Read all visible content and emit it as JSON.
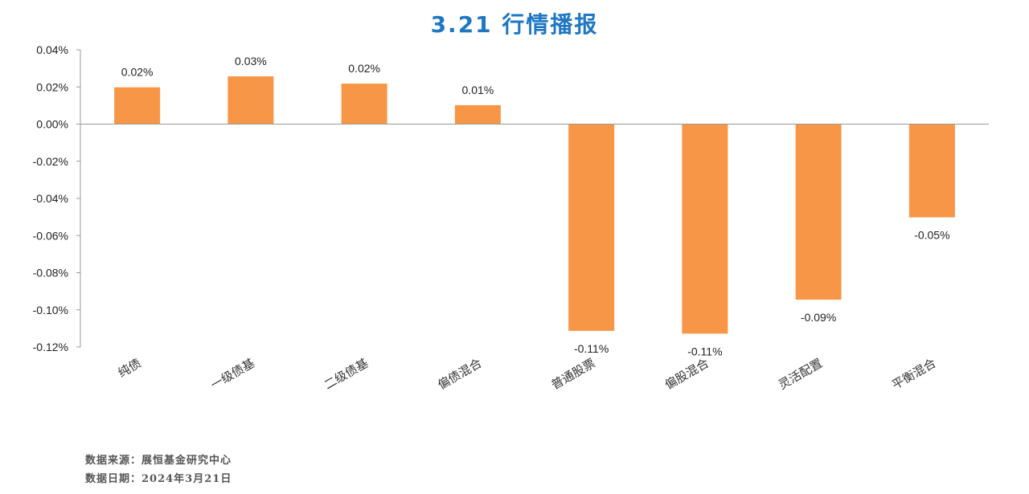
{
  "chart_data": {
    "type": "bar",
    "title": "3.21 行情播报",
    "categories": [
      "纯债",
      "一级债基",
      "二级债基",
      "偏债混合",
      "普通股票",
      "偏股混合",
      "灵活配置",
      "平衡混合"
    ],
    "values": [
      0.0198,
      0.0257,
      0.0218,
      0.0102,
      -0.1113,
      -0.1128,
      -0.0945,
      -0.0502
    ],
    "value_labels": [
      "0.02%",
      "0.03%",
      "0.02%",
      "0.01%",
      "-0.11%",
      "-0.11%",
      "-0.09%",
      "-0.05%"
    ],
    "yticks": [
      0.04,
      0.02,
      0.0,
      -0.02,
      -0.04,
      -0.06,
      -0.08,
      -0.1,
      -0.12
    ],
    "ytick_labels": [
      "0.04%",
      "0.02%",
      "0.00%",
      "-0.02%",
      "-0.04%",
      "-0.06%",
      "-0.08%",
      "-0.10%",
      "-0.12%"
    ],
    "ylim": [
      -0.12,
      0.04
    ],
    "bar_color": "#f79646",
    "axis_color": "#999999",
    "grid": false,
    "legend": "none"
  },
  "footer": {
    "source": "数据来源：展恒基金研究中心",
    "date": "数据日期：2024年3月21日"
  }
}
